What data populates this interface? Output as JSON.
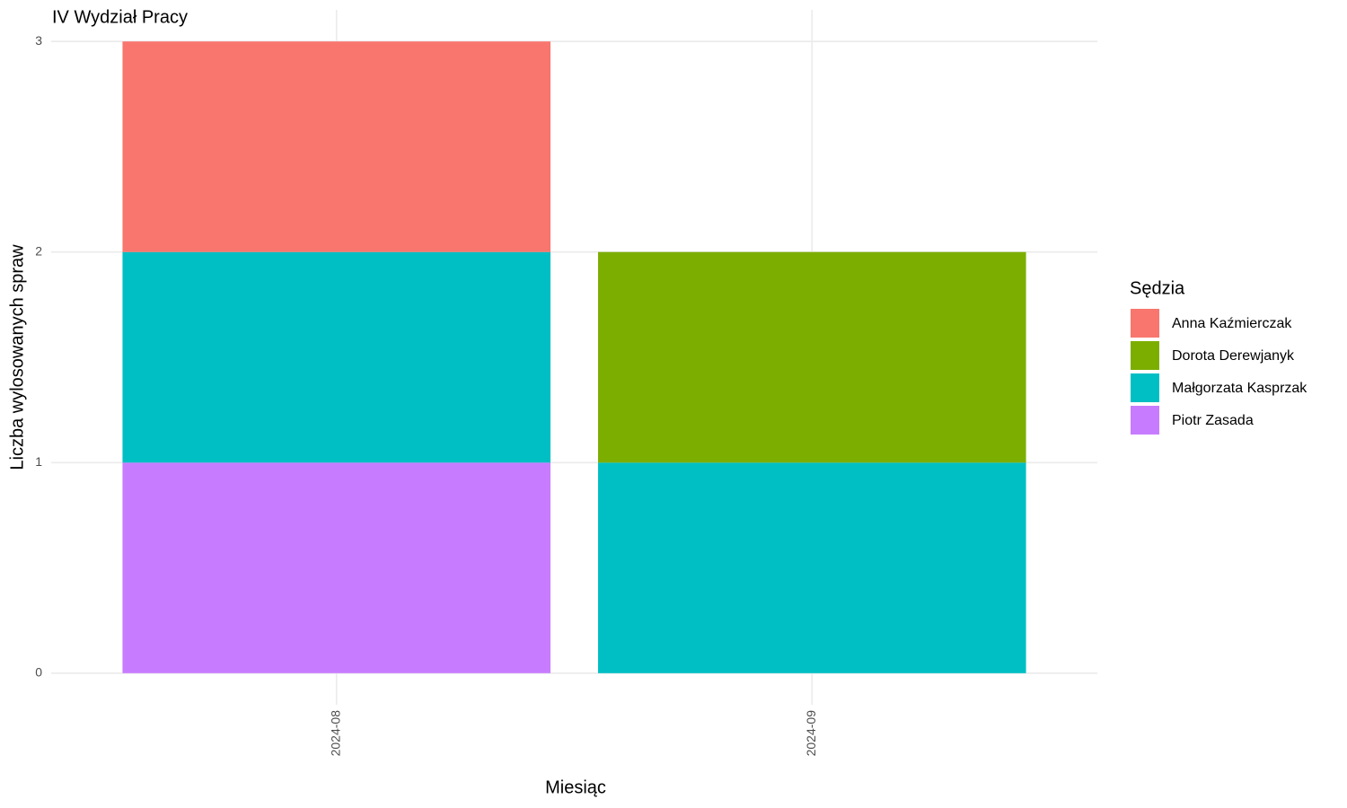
{
  "chart_data": {
    "type": "bar",
    "stacked": true,
    "title": "IV Wydział Pracy",
    "x_label": "Miesiąc",
    "y_label": "Liczba wylosowanych spraw",
    "legend_title": "Sędzia",
    "legend_position": "right",
    "categories": [
      "2024-08",
      "2024-09"
    ],
    "series": [
      {
        "name": "Anna Kaźmierczak",
        "color": "#f8766d",
        "values": [
          1,
          0
        ]
      },
      {
        "name": "Dorota Derewjanyk",
        "color": "#7cae00",
        "values": [
          0,
          1
        ]
      },
      {
        "name": "Małgorzata Kasprzak",
        "color": "#00bfc4",
        "values": [
          1,
          1
        ]
      },
      {
        "name": "Piotr Zasada",
        "color": "#c77cff",
        "values": [
          1,
          0
        ]
      }
    ],
    "ylim": [
      -0.15,
      3.15
    ],
    "yticks": [
      0,
      1,
      2,
      3
    ],
    "grid": true
  }
}
